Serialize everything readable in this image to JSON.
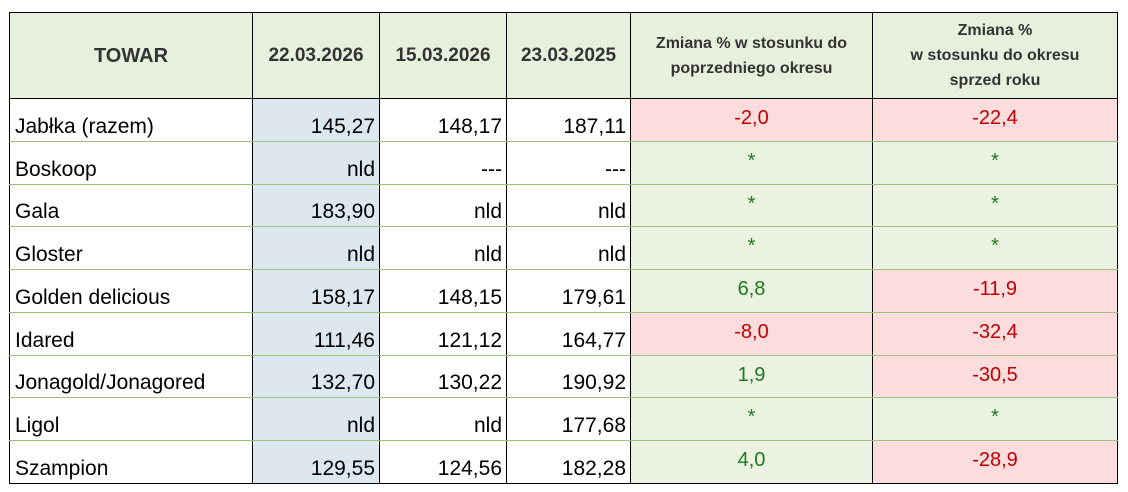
{
  "headers": {
    "towar": "TOWAR",
    "date1": "22.03.2026",
    "date2": "15.03.2026",
    "date3": "23.03.2025",
    "change_prev": [
      "Zmiana % w stosunku do",
      "poprzedniego okresu"
    ],
    "change_year": [
      "Zmiana %",
      "w stosunku do okresu",
      "sprzed roku"
    ]
  },
  "rows": [
    {
      "name": "Jabłka (razem)",
      "d1": "145,27",
      "d2": "148,17",
      "d3": "187,11",
      "chg_prev": "-2,0",
      "chg_year": "-22,4"
    },
    {
      "name": "Boskoop",
      "d1": "nld",
      "d2": "---",
      "d3": "---",
      "chg_prev": "*",
      "chg_year": "*"
    },
    {
      "name": "Gala",
      "d1": "183,90",
      "d2": "nld",
      "d3": "nld",
      "chg_prev": "*",
      "chg_year": "*"
    },
    {
      "name": "Gloster",
      "d1": "nld",
      "d2": "nld",
      "d3": "nld",
      "chg_prev": "*",
      "chg_year": "*"
    },
    {
      "name": "Golden delicious",
      "d1": "158,17",
      "d2": "148,15",
      "d3": "179,61",
      "chg_prev": "6,8",
      "chg_year": "-11,9"
    },
    {
      "name": "Idared",
      "d1": "111,46",
      "d2": "121,12",
      "d3": "164,77",
      "chg_prev": "-8,0",
      "chg_year": "-32,4"
    },
    {
      "name": "Jonagold/Jonagored",
      "d1": "132,70",
      "d2": "130,22",
      "d3": "190,92",
      "chg_prev": "1,9",
      "chg_year": "-30,5"
    },
    {
      "name": "Ligol",
      "d1": "nld",
      "d2": "nld",
      "d3": "177,68",
      "chg_prev": "*",
      "chg_year": "*"
    },
    {
      "name": "Szampion",
      "d1": "129,55",
      "d2": "124,56",
      "d3": "182,28",
      "chg_prev": "4,0",
      "chg_year": "-28,9"
    }
  ],
  "colors": {
    "header_bg": "#e7f0dc",
    "current_col_bg": "#dde7ef",
    "negative_bg": "#fcdcdc",
    "negative_text": "#c00000",
    "positive_bg": "#ebf2e1",
    "positive_text": "#1e7a1e"
  }
}
